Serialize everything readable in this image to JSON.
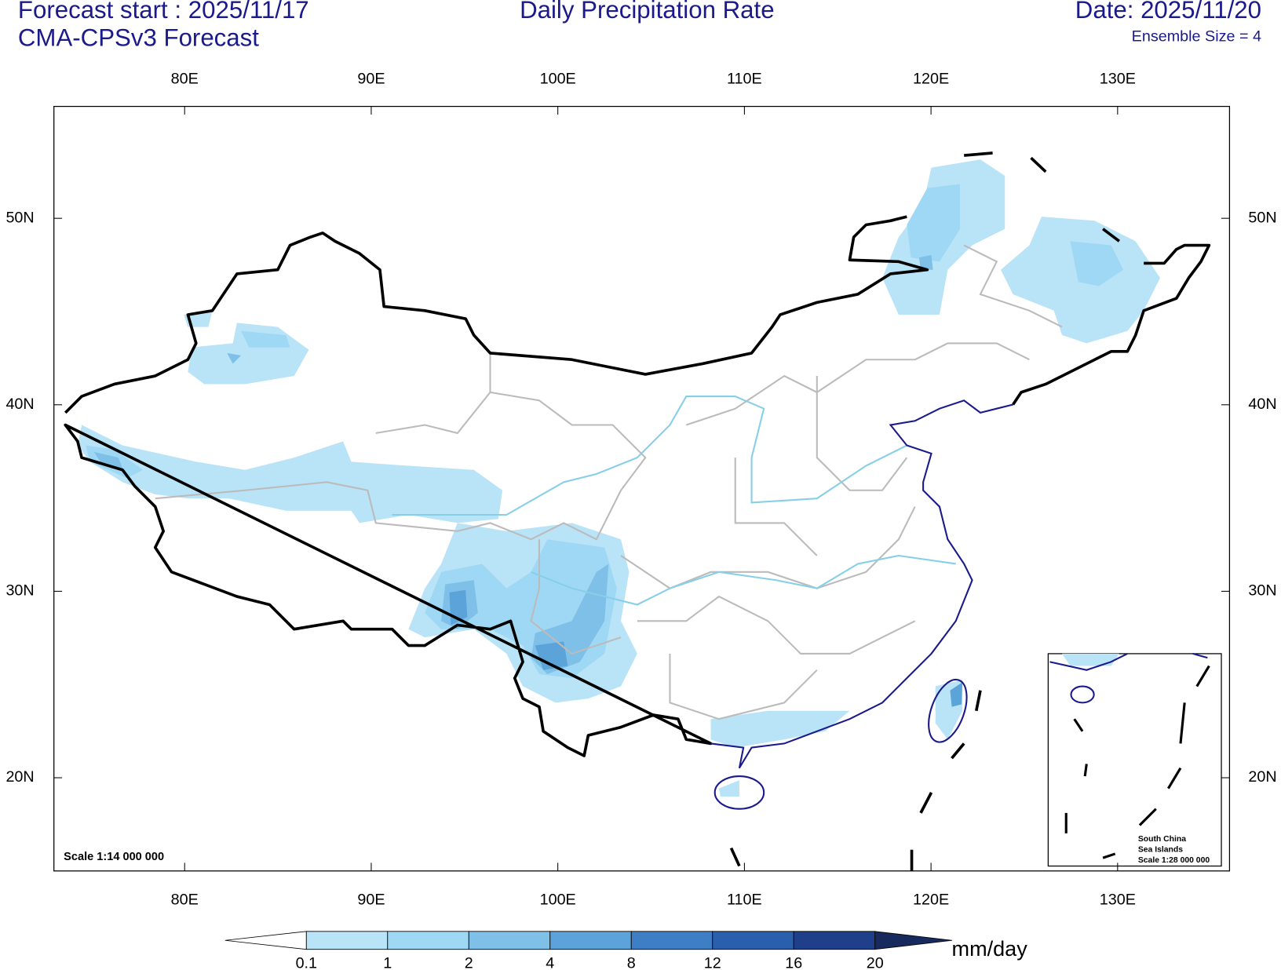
{
  "header": {
    "forecast_start": "Forecast start : 2025/11/17",
    "model": "CMA-CPSv3 Forecast",
    "title": "Daily Precipitation Rate",
    "date": "Date: 2025/11/20",
    "ensemble": "Ensemble Size = 4"
  },
  "map": {
    "lon_ticks": [
      {
        "value": 80,
        "label": "80E"
      },
      {
        "value": 90,
        "label": "90E"
      },
      {
        "value": 100,
        "label": "100E"
      },
      {
        "value": 110,
        "label": "110E"
      },
      {
        "value": 120,
        "label": "120E"
      },
      {
        "value": 130,
        "label": "130E"
      }
    ],
    "lat_ticks": [
      {
        "value": 20,
        "label": "20N"
      },
      {
        "value": 30,
        "label": "30N"
      },
      {
        "value": 40,
        "label": "40N"
      },
      {
        "value": 50,
        "label": "50N"
      }
    ],
    "scale": "Scale 1:14 000 000",
    "inset": {
      "lines": [
        "South China",
        "Sea Islands",
        "Scale 1:28 000 000"
      ]
    }
  },
  "colorbar": {
    "levels": [
      0.1,
      1,
      2,
      4,
      8,
      12,
      16,
      20
    ],
    "colors": [
      "#ffffff",
      "#b9e3f7",
      "#9fd8f4",
      "#7fc0e8",
      "#5ba3d9",
      "#3d7ec4",
      "#2a5fae",
      "#1f3f8a",
      "#18295e"
    ],
    "unit": "mm/day"
  }
}
